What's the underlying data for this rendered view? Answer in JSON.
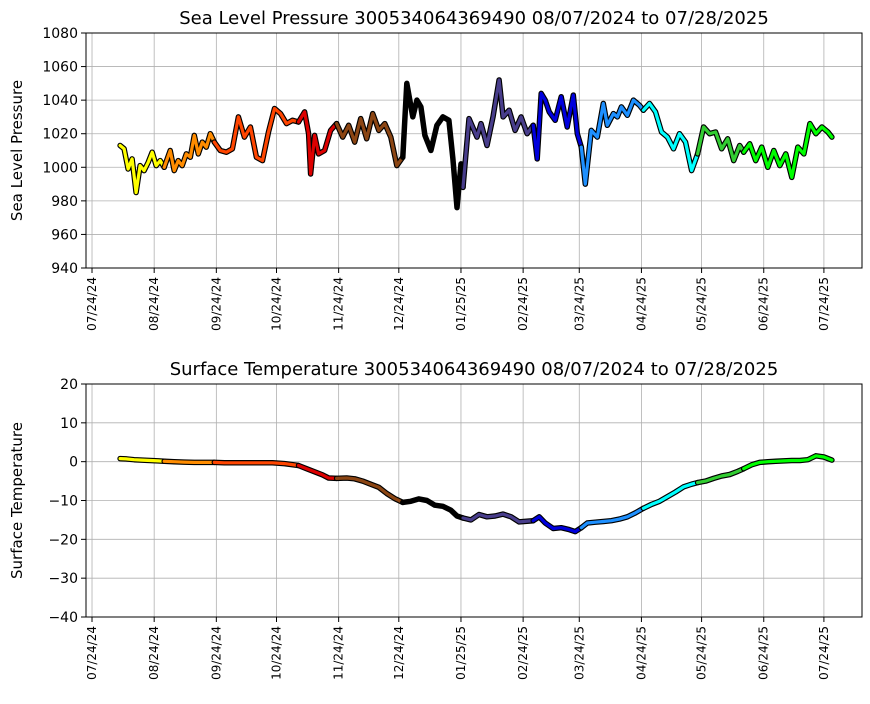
{
  "chart_data": [
    {
      "type": "line",
      "title": "Sea Level Pressure 300534064369490  08/07/2024 to 07/28/2025",
      "xlabel": "",
      "ylabel": "Sea Level Pressure",
      "ylim": [
        940,
        1080
      ],
      "yticks": [
        940,
        960,
        980,
        1000,
        1020,
        1040,
        1060,
        1080
      ],
      "xrange": [
        "2024-07-21",
        "2025-08-12"
      ],
      "xticks": [
        "2024-07-24",
        "2024-08-24",
        "2024-09-24",
        "2024-10-24",
        "2024-11-24",
        "2024-12-24",
        "2025-01-24",
        "2025-02-24",
        "2025-03-24",
        "2025-04-24",
        "2025-05-24",
        "2025-06-24",
        "2025-07-24"
      ],
      "xtick_labels": [
        "07/24/24",
        "08/24/24",
        "09/24/24",
        "10/24/24",
        "11/24/24",
        "12/24/24",
        "01/25/25",
        "02/24/25",
        "03/24/25",
        "04/24/25",
        "05/24/25",
        "06/24/25",
        "07/24/25"
      ],
      "grid": true,
      "series": [
        {
          "color": "#ffff00",
          "x": [
            "2024-08-07",
            "2024-08-09",
            "2024-08-11",
            "2024-08-13",
            "2024-08-15",
            "2024-08-17",
            "2024-08-19",
            "2024-08-21",
            "2024-08-23",
            "2024-08-25",
            "2024-08-27",
            "2024-08-29"
          ],
          "values": [
            1013,
            1011,
            999,
            1005,
            985,
            1001,
            998,
            1003,
            1009,
            1001,
            1004,
            1000
          ]
        },
        {
          "color": "#ff8c00",
          "x": [
            "2024-08-29",
            "2024-09-01",
            "2024-09-03",
            "2024-09-05",
            "2024-09-07",
            "2024-09-09",
            "2024-09-11",
            "2024-09-13",
            "2024-09-15",
            "2024-09-17",
            "2024-09-19",
            "2024-09-21",
            "2024-09-23"
          ],
          "values": [
            1000,
            1010,
            998,
            1004,
            1001,
            1008,
            1006,
            1019,
            1008,
            1015,
            1012,
            1020,
            1015
          ]
        },
        {
          "color": "#ff4500",
          "x": [
            "2024-09-23",
            "2024-09-26",
            "2024-09-29",
            "2024-10-02",
            "2024-10-05",
            "2024-10-08",
            "2024-10-11",
            "2024-10-14",
            "2024-10-17",
            "2024-10-20",
            "2024-10-23",
            "2024-10-26",
            "2024-10-29",
            "2024-11-01",
            "2024-11-04"
          ],
          "values": [
            1015,
            1010,
            1009,
            1011,
            1030,
            1018,
            1024,
            1006,
            1004,
            1021,
            1035,
            1032,
            1026,
            1028,
            1027
          ]
        },
        {
          "color": "#dd0000",
          "x": [
            "2024-11-04",
            "2024-11-07",
            "2024-11-09",
            "2024-11-10",
            "2024-11-12",
            "2024-11-14",
            "2024-11-17",
            "2024-11-20",
            "2024-11-23"
          ],
          "values": [
            1027,
            1033,
            1020,
            996,
            1019,
            1008,
            1010,
            1022,
            1026
          ]
        },
        {
          "color": "#8b4513",
          "x": [
            "2024-11-23",
            "2024-11-26",
            "2024-11-29",
            "2024-12-02",
            "2024-12-05",
            "2024-12-08",
            "2024-12-11",
            "2024-12-14",
            "2024-12-17",
            "2024-12-20",
            "2024-12-23",
            "2024-12-26"
          ],
          "values": [
            1026,
            1018,
            1025,
            1015,
            1029,
            1017,
            1032,
            1022,
            1026,
            1018,
            1001,
            1006
          ]
        },
        {
          "color": "#000000",
          "x": [
            "2024-12-26",
            "2024-12-28",
            "2024-12-31",
            "2025-01-02",
            "2025-01-04",
            "2025-01-06",
            "2025-01-09",
            "2025-01-12",
            "2025-01-15",
            "2025-01-18",
            "2025-01-20",
            "2025-01-22",
            "2025-01-24",
            "2025-01-25"
          ],
          "values": [
            1006,
            1050,
            1030,
            1040,
            1036,
            1019,
            1010,
            1025,
            1030,
            1028,
            1005,
            976,
            1002,
            988
          ]
        },
        {
          "color": "#483d8b",
          "x": [
            "2025-01-25",
            "2025-01-28",
            "2025-02-01",
            "2025-02-03",
            "2025-02-06",
            "2025-02-09",
            "2025-02-12",
            "2025-02-14",
            "2025-02-17",
            "2025-02-20",
            "2025-02-23",
            "2025-02-26",
            "2025-03-01"
          ],
          "values": [
            988,
            1029,
            1018,
            1026,
            1013,
            1030,
            1052,
            1030,
            1034,
            1022,
            1030,
            1020,
            1025
          ]
        },
        {
          "color": "#0000dd",
          "x": [
            "2025-03-01",
            "2025-03-03",
            "2025-03-05",
            "2025-03-07",
            "2025-03-09",
            "2025-03-12",
            "2025-03-15",
            "2025-03-18",
            "2025-03-21",
            "2025-03-23",
            "2025-03-25"
          ],
          "values": [
            1025,
            1005,
            1044,
            1040,
            1033,
            1028,
            1042,
            1024,
            1043,
            1020,
            1012
          ]
        },
        {
          "color": "#1e90ff",
          "x": [
            "2025-03-25",
            "2025-03-27",
            "2025-03-30",
            "2025-04-02",
            "2025-04-05",
            "2025-04-07",
            "2025-04-10",
            "2025-04-12",
            "2025-04-14",
            "2025-04-17",
            "2025-04-20",
            "2025-04-23",
            "2025-04-25"
          ],
          "values": [
            1012,
            990,
            1022,
            1018,
            1038,
            1025,
            1032,
            1030,
            1036,
            1031,
            1040,
            1037,
            1034
          ]
        },
        {
          "color": "#00ffff",
          "x": [
            "2025-04-25",
            "2025-04-28",
            "2025-05-01",
            "2025-05-04",
            "2025-05-07",
            "2025-05-10",
            "2025-05-13",
            "2025-05-16",
            "2025-05-19",
            "2025-05-22"
          ],
          "values": [
            1034,
            1038,
            1033,
            1021,
            1018,
            1011,
            1020,
            1015,
            998,
            1008
          ]
        },
        {
          "color": "#32cd32",
          "x": [
            "2025-05-22",
            "2025-05-25",
            "2025-05-28",
            "2025-05-31",
            "2025-06-03",
            "2025-06-06",
            "2025-06-09",
            "2025-06-12",
            "2025-06-14"
          ],
          "values": [
            1008,
            1024,
            1020,
            1021,
            1011,
            1017,
            1004,
            1013,
            1009
          ]
        },
        {
          "color": "#00ff00",
          "x": [
            "2025-06-14",
            "2025-06-17",
            "2025-06-20",
            "2025-06-23",
            "2025-06-26",
            "2025-06-29",
            "2025-07-02",
            "2025-07-05",
            "2025-07-08",
            "2025-07-11",
            "2025-07-14",
            "2025-07-17",
            "2025-07-20",
            "2025-07-23",
            "2025-07-26",
            "2025-07-28"
          ],
          "values": [
            1009,
            1014,
            1004,
            1012,
            1000,
            1010,
            1001,
            1008,
            994,
            1012,
            1008,
            1026,
            1020,
            1024,
            1021,
            1018
          ]
        }
      ]
    },
    {
      "type": "line",
      "title": "Surface Temperature 300534064369490  08/07/2024 to 07/28/2025",
      "xlabel": "",
      "ylabel": "Surface Temperature",
      "ylim": [
        -40,
        20
      ],
      "yticks": [
        -40,
        -30,
        -20,
        -10,
        0,
        10,
        20
      ],
      "xrange": [
        "2024-07-21",
        "2025-08-12"
      ],
      "xticks": [
        "2024-07-24",
        "2024-08-24",
        "2024-09-24",
        "2024-10-24",
        "2024-11-24",
        "2024-12-24",
        "2025-01-24",
        "2025-02-24",
        "2025-03-24",
        "2025-04-24",
        "2025-05-24",
        "2025-06-24",
        "2025-07-24"
      ],
      "xtick_labels": [
        "07/24/24",
        "08/24/24",
        "09/24/24",
        "10/24/24",
        "11/24/24",
        "12/24/24",
        "01/25/25",
        "02/24/25",
        "03/24/25",
        "04/24/25",
        "05/24/25",
        "06/24/25",
        "07/24/25"
      ],
      "grid": true,
      "series": [
        {
          "color": "#ffff00",
          "x": [
            "2024-08-07",
            "2024-08-10",
            "2024-08-14",
            "2024-08-18",
            "2024-08-22",
            "2024-08-26",
            "2024-08-29"
          ],
          "values": [
            0.8,
            0.7,
            0.5,
            0.4,
            0.3,
            0.2,
            0.1
          ]
        },
        {
          "color": "#ff8c00",
          "x": [
            "2024-08-29",
            "2024-09-03",
            "2024-09-08",
            "2024-09-13",
            "2024-09-18",
            "2024-09-23"
          ],
          "values": [
            0.1,
            0.0,
            -0.1,
            -0.2,
            -0.2,
            -0.2
          ]
        },
        {
          "color": "#ff4500",
          "x": [
            "2024-09-23",
            "2024-09-28",
            "2024-10-04",
            "2024-10-10",
            "2024-10-16",
            "2024-10-22",
            "2024-10-28",
            "2024-11-04"
          ],
          "values": [
            -0.2,
            -0.3,
            -0.3,
            -0.3,
            -0.3,
            -0.3,
            -0.5,
            -1.0
          ]
        },
        {
          "color": "#dd0000",
          "x": [
            "2024-11-04",
            "2024-11-08",
            "2024-11-12",
            "2024-11-16",
            "2024-11-19",
            "2024-11-23"
          ],
          "values": [
            -1.0,
            -1.8,
            -2.6,
            -3.4,
            -4.2,
            -4.3
          ]
        },
        {
          "color": "#8b4513",
          "x": [
            "2024-11-23",
            "2024-11-28",
            "2024-12-02",
            "2024-12-06",
            "2024-12-10",
            "2024-12-14",
            "2024-12-18",
            "2024-12-22",
            "2024-12-26"
          ],
          "values": [
            -4.3,
            -4.2,
            -4.4,
            -5.0,
            -5.8,
            -6.6,
            -8.2,
            -9.5,
            -10.5
          ]
        },
        {
          "color": "#000000",
          "x": [
            "2024-12-26",
            "2024-12-30",
            "2025-01-03",
            "2025-01-07",
            "2025-01-11",
            "2025-01-15",
            "2025-01-19",
            "2025-01-22",
            "2025-01-25"
          ],
          "values": [
            -10.5,
            -10.2,
            -9.6,
            -10.0,
            -11.2,
            -11.5,
            -12.5,
            -14.0,
            -14.5
          ]
        },
        {
          "color": "#483d8b",
          "x": [
            "2025-01-25",
            "2025-01-29",
            "2025-02-02",
            "2025-02-06",
            "2025-02-10",
            "2025-02-14",
            "2025-02-18",
            "2025-02-22",
            "2025-03-01"
          ],
          "values": [
            -14.5,
            -15.0,
            -13.6,
            -14.2,
            -14.0,
            -13.5,
            -14.2,
            -15.5,
            -15.2
          ]
        },
        {
          "color": "#0000dd",
          "x": [
            "2025-03-01",
            "2025-03-04",
            "2025-03-07",
            "2025-03-11",
            "2025-03-15",
            "2025-03-19",
            "2025-03-22",
            "2025-03-25"
          ],
          "values": [
            -15.2,
            -14.2,
            -15.8,
            -17.2,
            -17.0,
            -17.5,
            -18.0,
            -17.0
          ]
        },
        {
          "color": "#1e90ff",
          "x": [
            "2025-03-25",
            "2025-03-28",
            "2025-04-01",
            "2025-04-05",
            "2025-04-09",
            "2025-04-13",
            "2025-04-17",
            "2025-04-21",
            "2025-04-25"
          ],
          "values": [
            -17.0,
            -15.8,
            -15.6,
            -15.4,
            -15.2,
            -14.8,
            -14.2,
            -13.2,
            -12.0
          ]
        },
        {
          "color": "#00ffff",
          "x": [
            "2025-04-25",
            "2025-04-29",
            "2025-05-03",
            "2025-05-07",
            "2025-05-11",
            "2025-05-15",
            "2025-05-19",
            "2025-05-22"
          ],
          "values": [
            -12.0,
            -11.0,
            -10.2,
            -9.0,
            -7.8,
            -6.5,
            -5.8,
            -5.4
          ]
        },
        {
          "color": "#32cd32",
          "x": [
            "2025-05-22",
            "2025-05-26",
            "2025-05-30",
            "2025-06-03",
            "2025-06-07",
            "2025-06-11",
            "2025-06-14"
          ],
          "values": [
            -5.4,
            -5.0,
            -4.3,
            -3.7,
            -3.3,
            -2.5,
            -1.8
          ]
        },
        {
          "color": "#00ff00",
          "x": [
            "2025-06-14",
            "2025-06-18",
            "2025-06-22",
            "2025-06-26",
            "2025-06-30",
            "2025-07-04",
            "2025-07-08",
            "2025-07-12",
            "2025-07-16",
            "2025-07-20",
            "2025-07-24",
            "2025-07-28"
          ],
          "values": [
            -1.8,
            -0.8,
            -0.2,
            0.0,
            0.1,
            0.2,
            0.3,
            0.3,
            0.5,
            1.5,
            1.2,
            0.4
          ]
        }
      ]
    }
  ]
}
